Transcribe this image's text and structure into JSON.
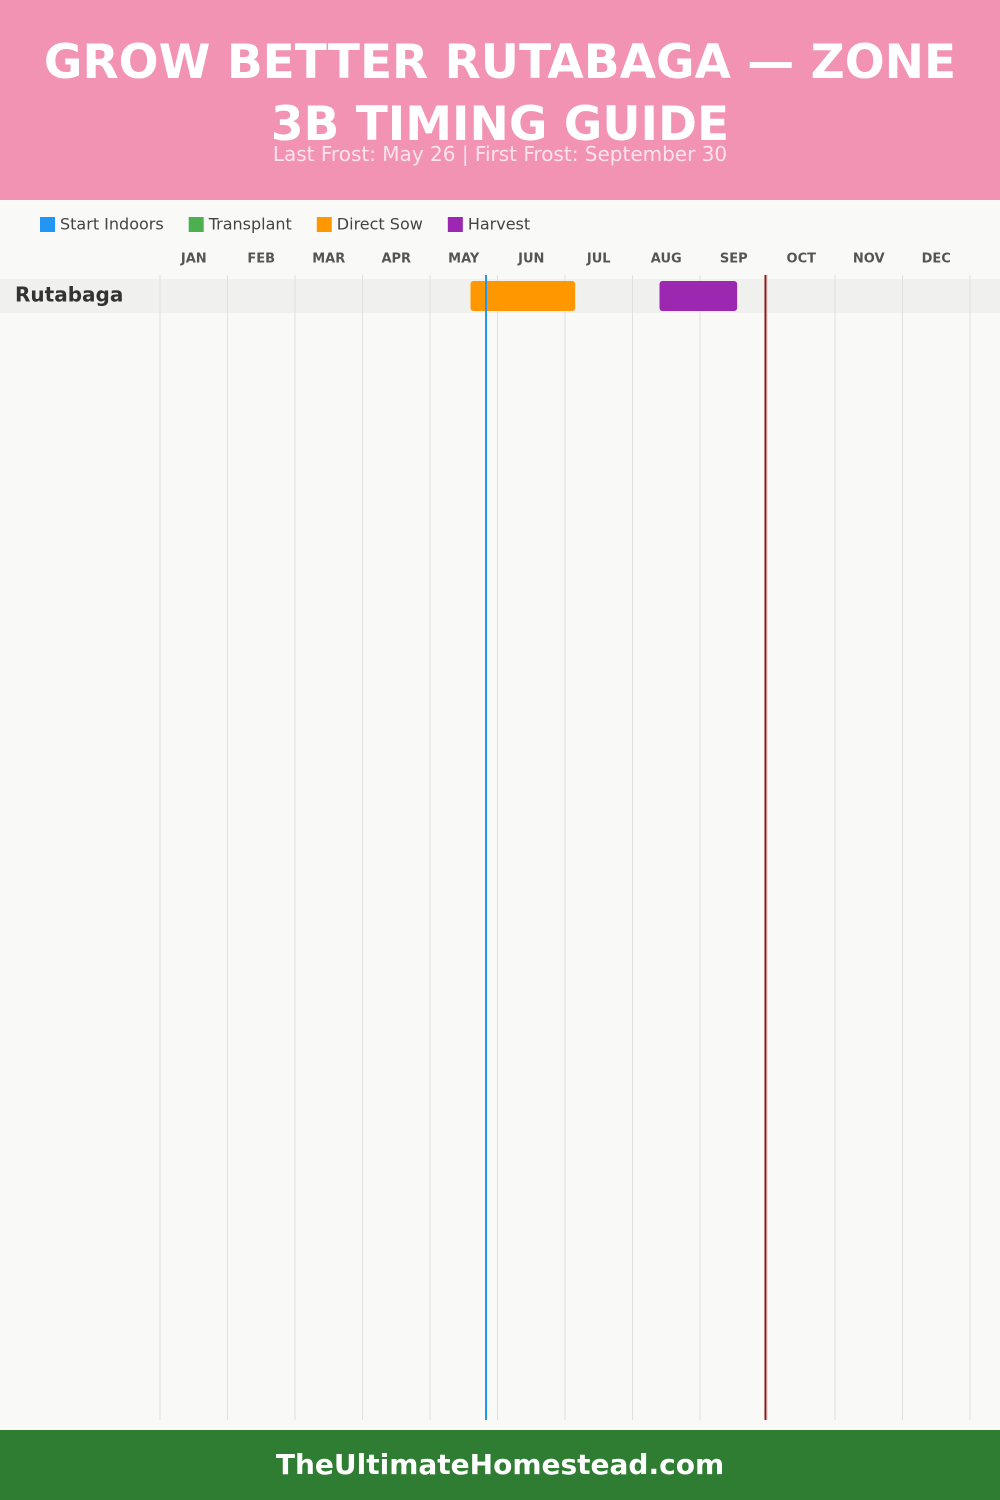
{
  "chart_data": {
    "type": "gantt",
    "title": "GROW BETTER RUTABAGA — ZONE 3B TIMING GUIDE",
    "subtitle": "Last Frost: May 26 | First Frost: September 30",
    "footer": "TheUltimateHomestead.com",
    "months": [
      "JAN",
      "FEB",
      "MAR",
      "APR",
      "MAY",
      "JUN",
      "JUL",
      "AUG",
      "SEP",
      "OCT",
      "NOV",
      "DEC"
    ],
    "xlim": [
      0,
      12
    ],
    "categories": [
      "Rutabaga"
    ],
    "series": [
      {
        "name": "Start Indoors",
        "color": "#2196f3",
        "start": [
          null
        ],
        "end": [
          null
        ]
      },
      {
        "name": "Transplant",
        "color": "#4caf50",
        "start": [
          null
        ],
        "end": [
          null
        ]
      },
      {
        "name": "Direct Sow",
        "color": "#ff9800",
        "start": [
          4.6
        ],
        "end": [
          6.15
        ]
      },
      {
        "name": "Harvest",
        "color": "#9c27b0",
        "start": [
          7.4
        ],
        "end": [
          8.55
        ]
      }
    ],
    "markers": [
      {
        "value": 4.83,
        "color": "#2196f3"
      },
      {
        "value": 8.97,
        "color": "#8b1a1a"
      }
    ],
    "grid": true
  }
}
